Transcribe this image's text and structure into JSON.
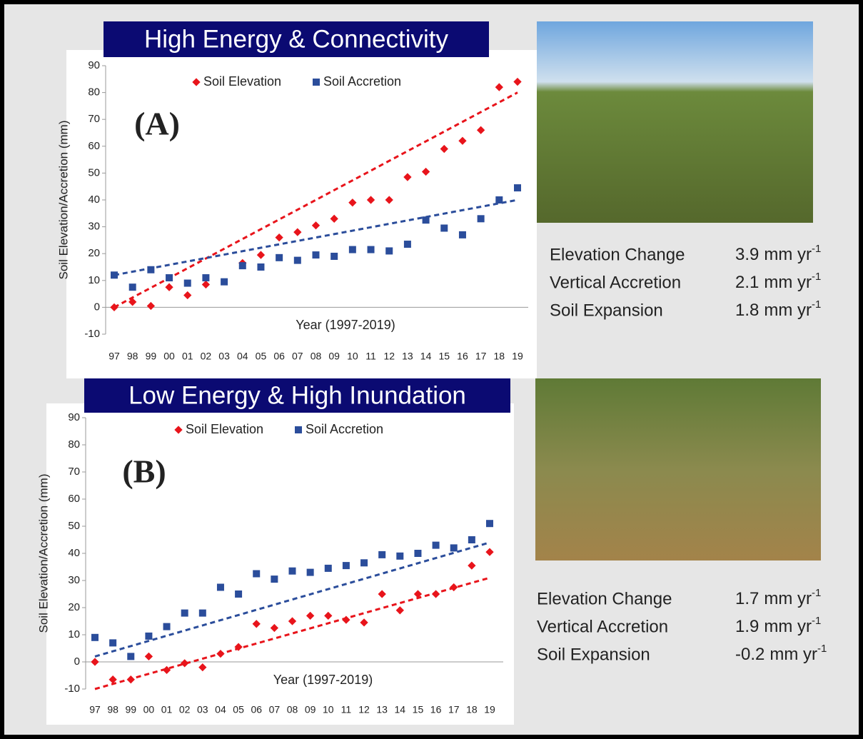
{
  "chart_data": [
    {
      "type": "scatter",
      "title": "High Energy & Connectivity",
      "panel_label": "(A)",
      "x_label": "Year (1997-2019)",
      "y_label": "Soil Elevation/Accretion (mm)",
      "categories": [
        "97",
        "98",
        "99",
        "00",
        "01",
        "02",
        "03",
        "04",
        "05",
        "06",
        "07",
        "08",
        "09",
        "10",
        "11",
        "12",
        "13",
        "14",
        "15",
        "16",
        "17",
        "18",
        "19"
      ],
      "series": [
        {
          "name": "Soil Elevation",
          "color": "#e8141b",
          "marker": "diamond",
          "values": [
            0,
            2,
            0.5,
            7.5,
            4.5,
            8.5,
            null,
            16.5,
            19.5,
            26,
            28,
            30.5,
            33,
            39,
            40,
            40,
            48.5,
            50.5,
            59,
            62,
            66,
            82,
            84
          ],
          "trend": [
            0,
            80
          ]
        },
        {
          "name": "Soil Accretion",
          "color": "#2b4d9b",
          "marker": "square",
          "values": [
            12,
            7.5,
            14,
            11,
            9,
            11,
            9.5,
            15.5,
            15,
            18.5,
            17.5,
            19.5,
            19,
            21.5,
            21.5,
            21,
            23.5,
            32.5,
            29.5,
            27,
            33,
            40,
            44.5
          ],
          "trend": [
            12,
            40
          ]
        }
      ],
      "ylim": [
        -10,
        90
      ],
      "yticks": [
        -10,
        0,
        10,
        20,
        30,
        40,
        50,
        60,
        70,
        80,
        90
      ],
      "stats": [
        {
          "label": "Elevation Change",
          "value": 3.9,
          "unit": "mm yr",
          "exponent": "-1"
        },
        {
          "label": "Vertical Accretion",
          "value": 2.1,
          "unit": "mm yr",
          "exponent": "-1"
        },
        {
          "label": "Soil Expansion",
          "value": 1.8,
          "unit": "mm yr",
          "exponent": "-1"
        }
      ]
    },
    {
      "type": "scatter",
      "title": "Low Energy & High Inundation",
      "panel_label": "(B)",
      "x_label": "Year (1997-2019)",
      "y_label": "Soil Elevation/Accretion (mm)",
      "categories": [
        "97",
        "98",
        "99",
        "00",
        "01",
        "02",
        "03",
        "04",
        "05",
        "06",
        "07",
        "08",
        "09",
        "10",
        "11",
        "12",
        "13",
        "14",
        "15",
        "16",
        "17",
        "18",
        "19"
      ],
      "series": [
        {
          "name": "Soil Elevation",
          "color": "#e8141b",
          "marker": "diamond",
          "values": [
            0,
            -6.5,
            -6.5,
            2,
            -3,
            -0.5,
            -2,
            3,
            5.5,
            14,
            12.5,
            15,
            17,
            17,
            15.5,
            14.5,
            25,
            19,
            25,
            25,
            27.5,
            35.5,
            40.5
          ],
          "trend": [
            -10,
            31
          ]
        },
        {
          "name": "Soil Accretion",
          "color": "#2b4d9b",
          "marker": "square",
          "values": [
            9,
            7,
            2,
            9.5,
            13,
            18,
            18,
            27.5,
            25,
            32.5,
            30.5,
            33.5,
            33,
            34.5,
            35.5,
            36.5,
            39.5,
            39,
            40,
            43,
            42,
            45,
            51
          ],
          "trend": [
            2,
            44
          ]
        }
      ],
      "ylim": [
        -10,
        90
      ],
      "yticks": [
        -10,
        0,
        10,
        20,
        30,
        40,
        50,
        60,
        70,
        80,
        90
      ],
      "stats": [
        {
          "label": "Elevation Change",
          "value": 1.7,
          "unit": "mm yr",
          "exponent": "-1"
        },
        {
          "label": "Vertical Accretion",
          "value": 1.9,
          "unit": "mm yr",
          "exponent": "-1"
        },
        {
          "label": "Soil Expansion",
          "value": -0.2,
          "unit": "mm yr",
          "exponent": "-1"
        }
      ]
    }
  ]
}
